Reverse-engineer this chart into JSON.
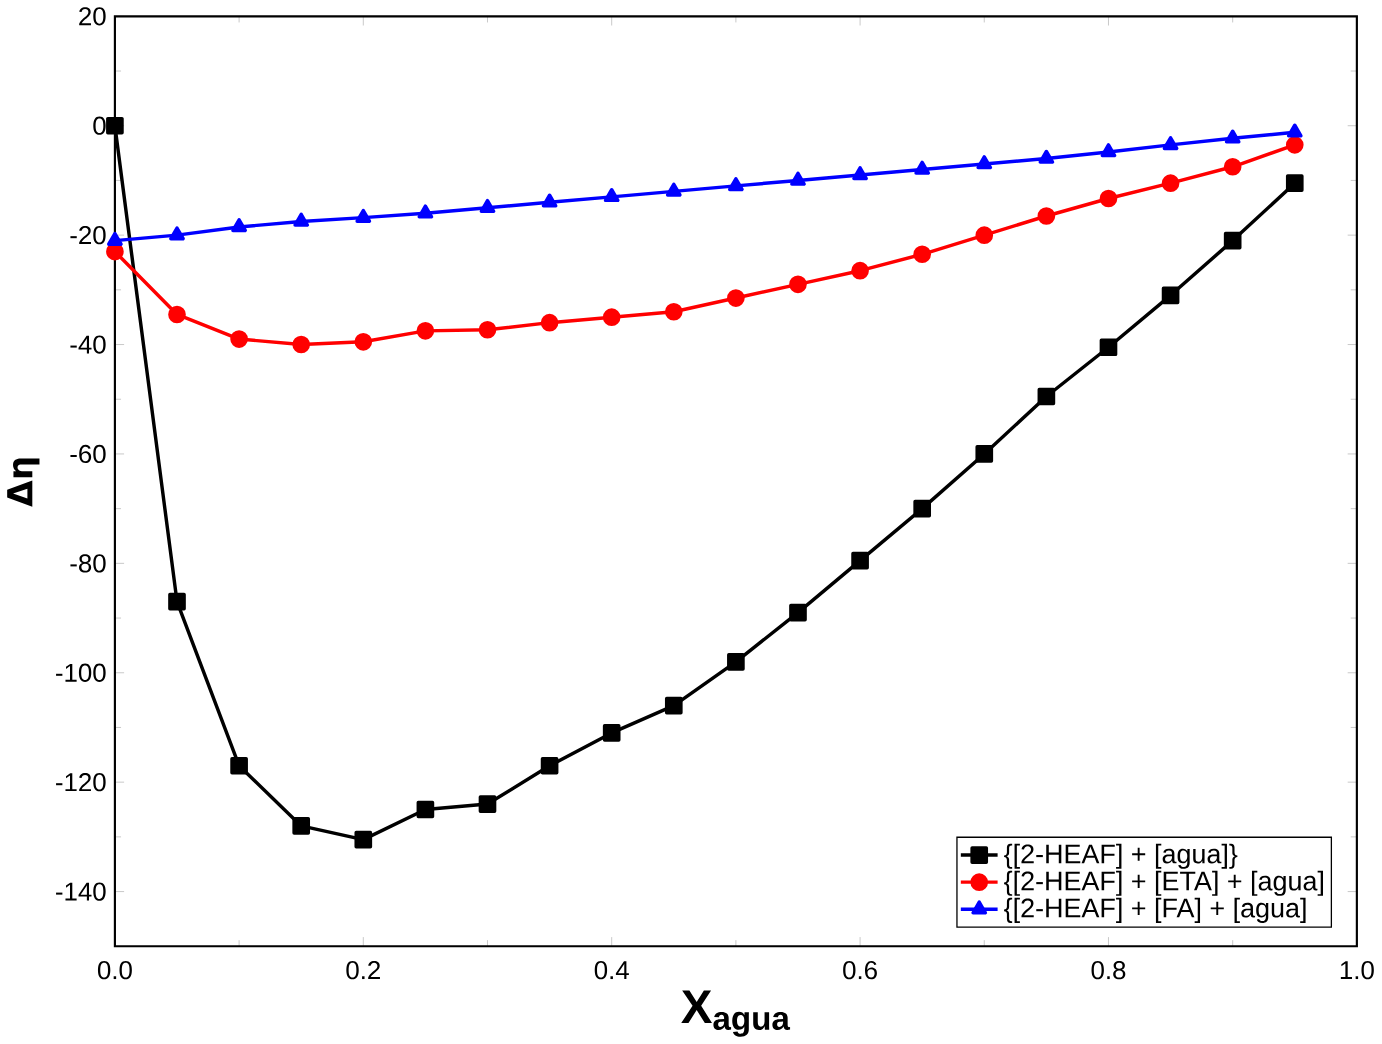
{
  "chart_data": {
    "type": "line",
    "xlabel": "X$_{agua}$",
    "ylabel": "Δη",
    "x": [
      0,
      0.05,
      0.1,
      0.15,
      0.2,
      0.25,
      0.3,
      0.35,
      0.4,
      0.45,
      0.5,
      0.55,
      0.6,
      0.65,
      0.7,
      0.75,
      0.8,
      0.85,
      0.9,
      0.95
    ],
    "series": [
      {
        "name": "{[2-HEAF] + [agua]}",
        "color": "#000000",
        "marker": "square",
        "values": [
          0,
          -87,
          -117,
          -128,
          -130.5,
          -125,
          -124,
          -117,
          -111,
          -106,
          -98,
          -89,
          -79.5,
          -70,
          -60,
          -49.5,
          -40.5,
          -31,
          -21,
          -10.5
        ]
      },
      {
        "name": "{[2-HEAF] + [ETA] + [agua]",
        "color": "#ff0000",
        "marker": "circle",
        "values": [
          -23,
          -34.5,
          -39,
          -40,
          -39.5,
          -37.5,
          -37.3,
          -36,
          -35,
          -34,
          -31.5,
          -29,
          -26.5,
          -23.5,
          -20,
          -16.5,
          -13.3,
          -10.5,
          -7.5,
          -3.5
        ]
      },
      {
        "name": "{[2-HEAF] + [FA] + [agua]",
        "color": "#0000ff",
        "marker": "triangle",
        "values": [
          -21,
          -20,
          -18.5,
          -17.5,
          -16.8,
          -16,
          -15,
          -14,
          -13,
          -12,
          -11,
          -10,
          -9,
          -8,
          -7,
          -6,
          -4.8,
          -3.5,
          -2.3,
          -1.2
        ]
      }
    ],
    "xlim": [
      0,
      1.0
    ],
    "xticks": [
      {
        "value": 0,
        "label": "0.0"
      },
      0.2,
      0.4,
      0.6,
      0.8,
      {
        "value": 1.0,
        "label": "1.0"
      }
    ],
    "ylim": [
      -150,
      20
    ],
    "yticks": [
      -140,
      -120,
      -100,
      -80,
      -60,
      -40,
      -20,
      0,
      20
    ],
    "legend": "bottom right",
    "grid": false,
    "line_style": "solid"
  }
}
